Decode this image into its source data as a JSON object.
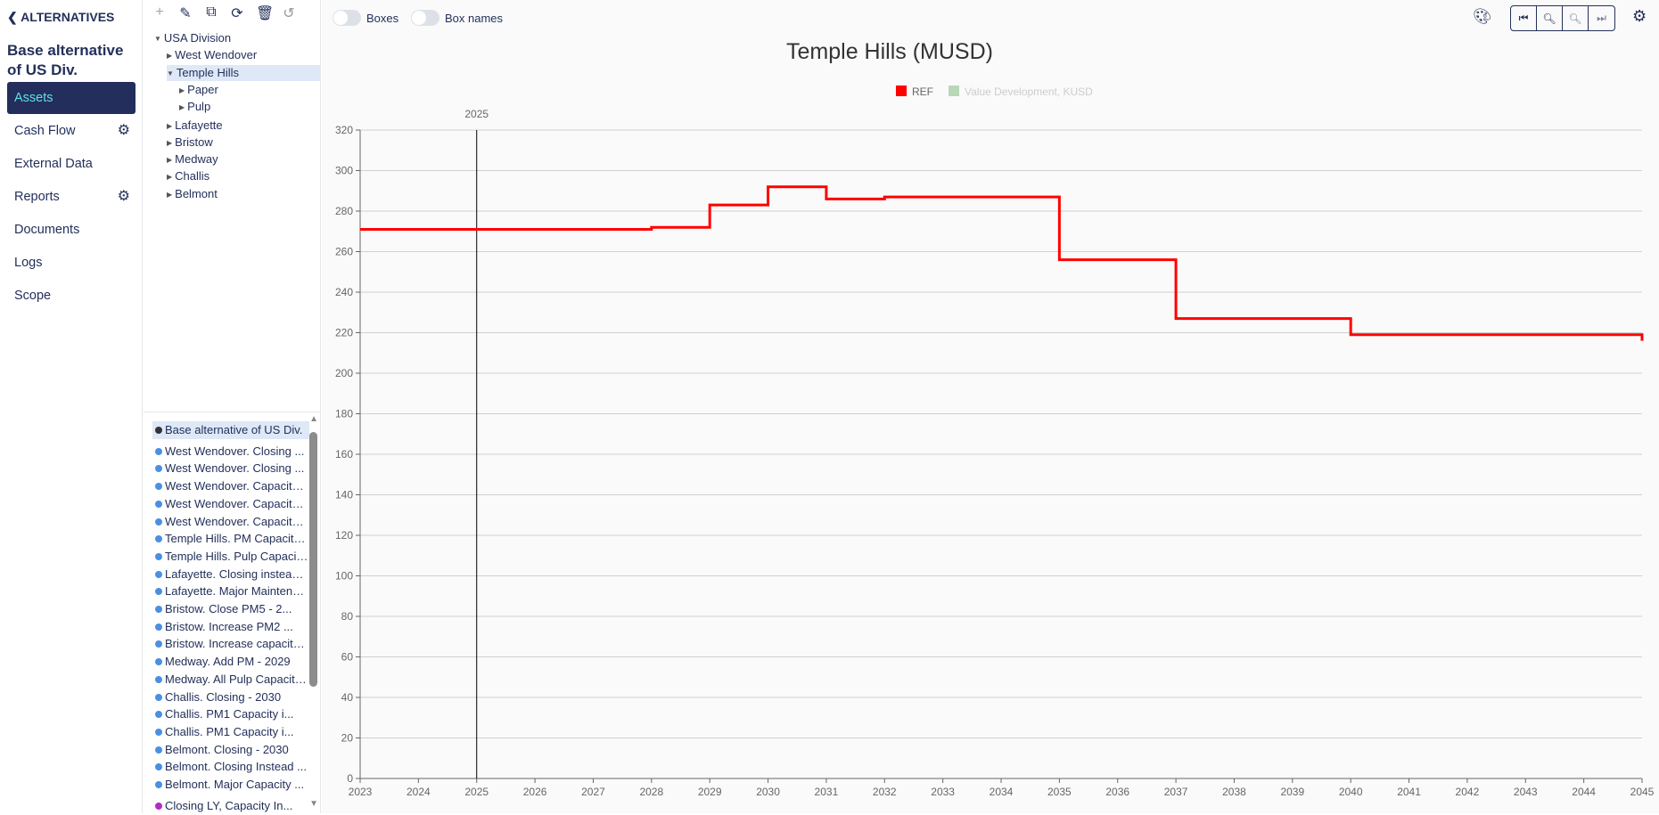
{
  "nav": {
    "back_label": "ALTERNATIVES",
    "title": "Base alternative of US Div.",
    "items": [
      {
        "label": "Assets",
        "active": true,
        "gear": false
      },
      {
        "label": "Cash Flow",
        "gear": true
      },
      {
        "label": "External Data",
        "gear": false
      },
      {
        "label": "Reports",
        "gear": true
      },
      {
        "label": "Documents",
        "gear": false
      },
      {
        "label": "Logs",
        "gear": false
      },
      {
        "label": "Scope",
        "gear": false
      }
    ]
  },
  "toolbar": {
    "icons": [
      "plus-icon",
      "pencil-icon",
      "copy-icon",
      "refresh-icon",
      "trash-icon",
      "undo-icon"
    ]
  },
  "tree": [
    {
      "label": "USA Division",
      "level": 0,
      "open": true
    },
    {
      "label": "West Wendover",
      "level": 1
    },
    {
      "label": "Temple Hills",
      "level": 1,
      "open": true,
      "selected": true
    },
    {
      "label": "Paper",
      "level": 2
    },
    {
      "label": "Pulp",
      "level": 2
    },
    {
      "label": "Lafayette",
      "level": 1
    },
    {
      "label": "Bristow",
      "level": 1
    },
    {
      "label": "Medway",
      "level": 1
    },
    {
      "label": "Challis",
      "level": 1
    },
    {
      "label": "Belmont",
      "level": 1
    }
  ],
  "alternatives": [
    {
      "label": "Base alternative of US Div.",
      "color": "#333333",
      "selected": true
    },
    {
      "label": "West Wendover. Closing ...",
      "color": "#4a90e2"
    },
    {
      "label": "West Wendover. Closing ...",
      "color": "#4a90e2"
    },
    {
      "label": "West Wendover. Capacity ...",
      "color": "#4a90e2"
    },
    {
      "label": "West Wendover. Capacity ...",
      "color": "#4a90e2"
    },
    {
      "label": "West Wendover. Capacity ...",
      "color": "#4a90e2"
    },
    {
      "label": "Temple Hills. PM Capacity ...",
      "color": "#4a90e2"
    },
    {
      "label": "Temple Hills. Pulp Capacity ...",
      "color": "#4a90e2"
    },
    {
      "label": "Lafayette. Closing instead ...",
      "color": "#4a90e2"
    },
    {
      "label": "Lafayette. Major Maintenance ...",
      "color": "#4a90e2"
    },
    {
      "label": "Bristow. Close PM5 - 2...",
      "color": "#4a90e2"
    },
    {
      "label": "Bristow. Increase PM2 ...",
      "color": "#4a90e2"
    },
    {
      "label": "Bristow. Increase capacity ...",
      "color": "#4a90e2"
    },
    {
      "label": "Medway. Add PM - 2029",
      "color": "#4a90e2"
    },
    {
      "label": "Medway. All Pulp Capacity ...",
      "color": "#4a90e2"
    },
    {
      "label": "Challis. Closing - 2030",
      "color": "#4a90e2"
    },
    {
      "label": "Challis. PM1 Capacity i...",
      "color": "#4a90e2"
    },
    {
      "label": "Challis. PM1 Capacity i...",
      "color": "#4a90e2"
    },
    {
      "label": "Belmont. Closing - 2030",
      "color": "#4a90e2"
    },
    {
      "label": "Belmont. Closing Instead ...",
      "color": "#4a90e2"
    },
    {
      "label": "Belmont. Major Capacity ...",
      "color": "#4a90e2"
    },
    {
      "label": "Closing LY, Capacity In...",
      "color": "#b22cc4"
    }
  ],
  "main": {
    "toggles": [
      {
        "label": "Boxes",
        "on": false
      },
      {
        "label": "Box names",
        "on": false
      }
    ]
  },
  "chart_data": {
    "type": "line",
    "step": true,
    "title": "Temple Hills (MUSD)",
    "legend": [
      {
        "name": "REF",
        "color": "#ff0000",
        "active": true
      },
      {
        "name": "Value Development, KUSD",
        "color": "#b8d8b8",
        "active": false
      }
    ],
    "legend_position": "top-center",
    "xlim": [
      2023,
      2045
    ],
    "ylim": [
      0,
      320
    ],
    "grid": true,
    "x_ticks": [
      2023,
      2024,
      2025,
      2026,
      2027,
      2028,
      2029,
      2030,
      2031,
      2032,
      2033,
      2034,
      2035,
      2036,
      2037,
      2038,
      2039,
      2040,
      2041,
      2042,
      2043,
      2044,
      2045
    ],
    "y_ticks": [
      0,
      20,
      40,
      60,
      80,
      100,
      120,
      140,
      160,
      180,
      200,
      220,
      240,
      260,
      280,
      300,
      320
    ],
    "marker_line": {
      "x": 2025,
      "label": "2025"
    },
    "series": [
      {
        "name": "REF",
        "color": "#ff0000",
        "x": [
          2023,
          2028,
          2029,
          2030,
          2031,
          2032,
          2035,
          2037,
          2040,
          2045
        ],
        "y": [
          271,
          272,
          283,
          292,
          286,
          287,
          256,
          227,
          219,
          216
        ]
      }
    ]
  }
}
